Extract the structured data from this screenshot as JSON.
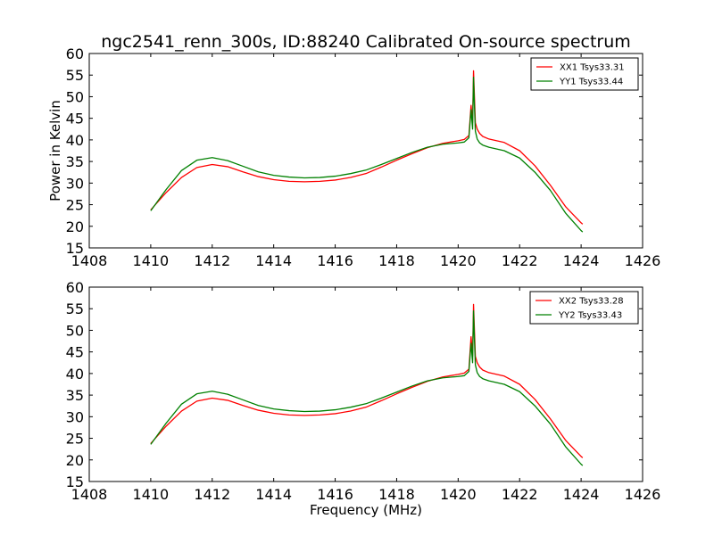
{
  "title": "ngc2541_renn_300s, ID:88240 Calibrated On-source spectrum",
  "ylabel": "Power in Kelvin",
  "xlabel": "Frequency (MHz)",
  "colors": {
    "red": "#ff0000",
    "green": "#008000"
  },
  "chart_data": [
    {
      "type": "line",
      "xlim": [
        1408,
        1426
      ],
      "ylim": [
        15,
        60
      ],
      "xticks": [
        1408,
        1410,
        1412,
        1414,
        1416,
        1418,
        1420,
        1422,
        1424,
        1426
      ],
      "yticks": [
        15,
        20,
        25,
        30,
        35,
        40,
        45,
        50,
        55,
        60
      ],
      "legend_position": "top-right",
      "series": [
        {
          "name": "XX1 Tsys33.31",
          "color": "#ff0000",
          "x": [
            1410.0,
            1410.5,
            1411.0,
            1411.5,
            1412.0,
            1412.5,
            1413.0,
            1413.5,
            1414.0,
            1414.5,
            1415.0,
            1415.5,
            1416.0,
            1416.5,
            1417.0,
            1417.5,
            1418.0,
            1418.5,
            1419.0,
            1419.5,
            1420.0,
            1420.2,
            1420.35,
            1420.42,
            1420.47,
            1420.5,
            1420.53,
            1420.56,
            1420.62,
            1420.7,
            1420.8,
            1421.0,
            1421.5,
            1422.0,
            1422.5,
            1423.0,
            1423.5,
            1424.0,
            1424.05
          ],
          "y": [
            23.8,
            27.8,
            31.3,
            33.6,
            34.3,
            33.8,
            32.6,
            31.5,
            30.8,
            30.4,
            30.3,
            30.4,
            30.7,
            31.3,
            32.2,
            33.7,
            35.3,
            36.8,
            38.2,
            39.2,
            39.8,
            40.1,
            41.0,
            48.0,
            44.0,
            56.0,
            50.0,
            44.0,
            42.5,
            41.5,
            40.8,
            40.2,
            39.4,
            37.5,
            34.0,
            29.5,
            24.5,
            20.8,
            20.5
          ]
        },
        {
          "name": "YY1 Tsys33.44",
          "color": "#008000",
          "x": [
            1410.0,
            1410.5,
            1411.0,
            1411.5,
            1412.0,
            1412.5,
            1413.0,
            1413.5,
            1414.0,
            1414.5,
            1415.0,
            1415.5,
            1416.0,
            1416.5,
            1417.0,
            1417.5,
            1418.0,
            1418.5,
            1419.0,
            1419.5,
            1420.0,
            1420.2,
            1420.35,
            1420.42,
            1420.47,
            1420.5,
            1420.53,
            1420.56,
            1420.62,
            1420.7,
            1420.8,
            1421.0,
            1421.5,
            1422.0,
            1422.5,
            1423.0,
            1423.5,
            1424.0,
            1424.05
          ],
          "y": [
            23.6,
            28.5,
            32.9,
            35.3,
            35.9,
            35.2,
            33.9,
            32.6,
            31.8,
            31.4,
            31.2,
            31.3,
            31.6,
            32.2,
            33.0,
            34.3,
            35.7,
            37.1,
            38.3,
            39.0,
            39.3,
            39.5,
            40.5,
            47.0,
            42.5,
            54.5,
            48.0,
            42.0,
            40.2,
            39.3,
            38.8,
            38.3,
            37.5,
            35.8,
            32.5,
            28.3,
            23.0,
            19.0,
            18.7
          ]
        }
      ]
    },
    {
      "type": "line",
      "xlim": [
        1408,
        1426
      ],
      "ylim": [
        15,
        60
      ],
      "xticks": [
        1408,
        1410,
        1412,
        1414,
        1416,
        1418,
        1420,
        1422,
        1424,
        1426
      ],
      "yticks": [
        15,
        20,
        25,
        30,
        35,
        40,
        45,
        50,
        55,
        60
      ],
      "legend_position": "top-right",
      "series": [
        {
          "name": "XX2 Tsys33.28",
          "color": "#ff0000",
          "x": [
            1410.0,
            1410.5,
            1411.0,
            1411.5,
            1412.0,
            1412.5,
            1413.0,
            1413.5,
            1414.0,
            1414.5,
            1415.0,
            1415.5,
            1416.0,
            1416.5,
            1417.0,
            1417.5,
            1418.0,
            1418.5,
            1419.0,
            1419.5,
            1420.0,
            1420.2,
            1420.35,
            1420.42,
            1420.47,
            1420.5,
            1420.53,
            1420.56,
            1420.62,
            1420.7,
            1420.8,
            1421.0,
            1421.5,
            1422.0,
            1422.5,
            1423.0,
            1423.5,
            1424.0,
            1424.05
          ],
          "y": [
            23.8,
            27.8,
            31.3,
            33.6,
            34.3,
            33.8,
            32.6,
            31.5,
            30.8,
            30.4,
            30.3,
            30.4,
            30.7,
            31.3,
            32.2,
            33.7,
            35.3,
            36.8,
            38.2,
            39.2,
            39.8,
            40.1,
            41.0,
            48.5,
            44.0,
            56.0,
            50.0,
            44.0,
            42.5,
            41.5,
            40.8,
            40.2,
            39.4,
            37.5,
            34.0,
            29.5,
            24.5,
            20.8,
            20.5
          ]
        },
        {
          "name": "YY2 Tsys33.43",
          "color": "#008000",
          "x": [
            1410.0,
            1410.5,
            1411.0,
            1411.5,
            1412.0,
            1412.5,
            1413.0,
            1413.5,
            1414.0,
            1414.5,
            1415.0,
            1415.5,
            1416.0,
            1416.5,
            1417.0,
            1417.5,
            1418.0,
            1418.5,
            1419.0,
            1419.5,
            1420.0,
            1420.2,
            1420.35,
            1420.42,
            1420.47,
            1420.5,
            1420.53,
            1420.56,
            1420.62,
            1420.7,
            1420.8,
            1421.0,
            1421.5,
            1422.0,
            1422.5,
            1423.0,
            1423.5,
            1424.0,
            1424.05
          ],
          "y": [
            23.6,
            28.5,
            32.9,
            35.3,
            35.9,
            35.2,
            33.9,
            32.6,
            31.8,
            31.4,
            31.2,
            31.3,
            31.6,
            32.2,
            33.0,
            34.3,
            35.7,
            37.1,
            38.3,
            39.0,
            39.3,
            39.5,
            40.5,
            47.0,
            42.5,
            54.5,
            48.0,
            42.0,
            40.2,
            39.3,
            38.8,
            38.3,
            37.5,
            35.8,
            32.5,
            28.3,
            23.0,
            19.0,
            18.7
          ]
        }
      ]
    }
  ]
}
